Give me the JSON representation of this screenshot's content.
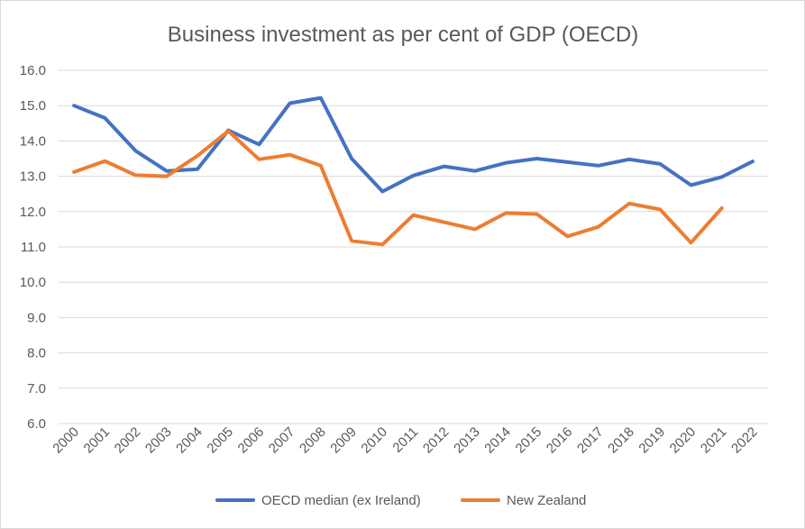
{
  "chart_data": {
    "type": "line",
    "title": "Business investment as per cent of GDP (OECD)",
    "xlabel": "",
    "ylabel": "",
    "ylim": [
      6.0,
      16.0
    ],
    "y_ticks": [
      "6.0",
      "7.0",
      "8.0",
      "9.0",
      "10.0",
      "11.0",
      "12.0",
      "13.0",
      "14.0",
      "15.0",
      "16.0"
    ],
    "categories": [
      "2000",
      "2001",
      "2002",
      "2003",
      "2004",
      "2005",
      "2006",
      "2007",
      "2008",
      "2009",
      "2010",
      "2011",
      "2012",
      "2013",
      "2014",
      "2015",
      "2016",
      "2017",
      "2018",
      "2019",
      "2020",
      "2021",
      "2022"
    ],
    "legend_position": "bottom",
    "series": [
      {
        "name": "OECD median (ex Ireland)",
        "color": "#4472C4",
        "values": [
          15.0,
          14.65,
          13.72,
          13.15,
          13.2,
          14.3,
          13.9,
          15.07,
          15.22,
          13.5,
          12.57,
          13.02,
          13.28,
          13.15,
          13.38,
          13.5,
          13.4,
          13.3,
          13.48,
          13.35,
          12.75,
          12.98,
          13.42
        ]
      },
      {
        "name": "New Zealand",
        "color": "#ED7D31",
        "values": [
          13.12,
          13.43,
          13.03,
          13.0,
          13.58,
          14.28,
          13.48,
          13.61,
          13.3,
          11.17,
          11.07,
          11.9,
          11.7,
          11.5,
          11.96,
          11.93,
          11.3,
          11.57,
          12.23,
          12.06,
          11.12,
          12.1,
          null
        ]
      }
    ]
  }
}
